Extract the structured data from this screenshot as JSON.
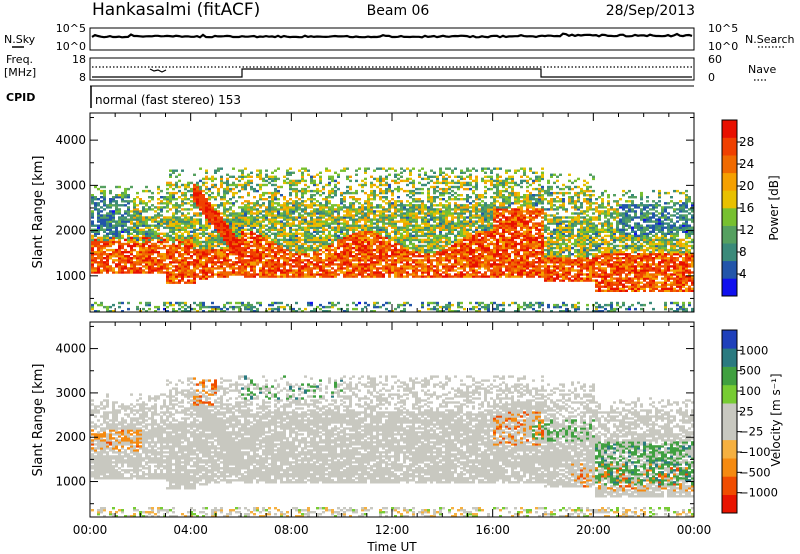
{
  "header": {
    "site": "Hankasalmi (fitACF)",
    "beam": "Beam 06",
    "date": "28/Sep/2013"
  },
  "status_panels": {
    "nsky_label": "N.Sky",
    "nsky_ticks": [
      "10^5",
      "10^0"
    ],
    "nsearch_label": "N.Search",
    "nsearch_ticks": [
      "10^5",
      "10^0"
    ],
    "freq_label_1": "Freq.",
    "freq_label_2": "[MHz]",
    "freq_ticks": [
      "18",
      "8"
    ],
    "nave_label": "Nave",
    "nave_ticks": [
      "60",
      "0"
    ],
    "cpid_label": "CPID",
    "cpid_text": "normal (fast stereo) 153"
  },
  "colors": {
    "power_scale": [
      "#1010ee",
      "#2255aa",
      "#3a8a7a",
      "#55a060",
      "#77c030",
      "#e8c000",
      "#f5a000",
      "#f06a00",
      "#f04000",
      "#e81000"
    ],
    "velocity_scale": [
      "#e81400",
      "#f04c00",
      "#f58a10",
      "#f5b040",
      "#c8c8c0",
      "#c8c8c0",
      "#77cc33",
      "#40a040",
      "#2a7a80",
      "#1f40bb"
    ]
  },
  "chart_data": [
    {
      "type": "heatmap",
      "quantity": "Power",
      "ylabel": "Slant Range [km]",
      "yticks": [
        "1000",
        "2000",
        "3000",
        "4000"
      ],
      "ylim": [
        200,
        4600
      ],
      "colorbar": {
        "label": "Power [dB]",
        "ticks": [
          "4",
          "8",
          "12",
          "16",
          "20",
          "24",
          "28"
        ],
        "range": [
          0,
          32
        ]
      }
    },
    {
      "type": "heatmap",
      "quantity": "Velocity",
      "xlabel": "Time UT",
      "xticks": [
        "00:00",
        "04:00",
        "08:00",
        "12:00",
        "16:00",
        "20:00",
        "00:00"
      ],
      "ylabel": "Slant Range [km]",
      "yticks": [
        "1000",
        "2000",
        "3000",
        "4000"
      ],
      "ylim": [
        200,
        4600
      ],
      "colorbar": {
        "label": "Velocity [m s⁻¹]",
        "ticks": [
          "1000",
          "500",
          "100",
          "25",
          "−25",
          "−100",
          "−500",
          "−1000"
        ]
      }
    }
  ]
}
